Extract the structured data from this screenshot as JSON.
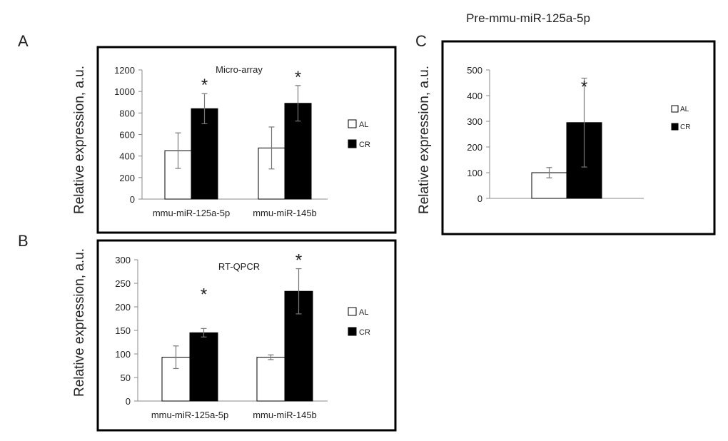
{
  "figure_title": "Pre-mmu-miR-125a-5p",
  "colors": {
    "al_fill": "#ffffff",
    "cr_fill": "#000000",
    "axis": "#888888",
    "error": "#777777",
    "frame": "#000000"
  },
  "chart_data": [
    {
      "panel": "A",
      "type": "bar",
      "title": "Micro-array",
      "ylabel": "Relative expression, a.u.",
      "xlabel": "",
      "ylim": [
        0,
        1200
      ],
      "yticks": [
        0,
        200,
        400,
        600,
        800,
        1000,
        1200
      ],
      "categories": [
        "mmu-miR-125a-5p",
        "mmu-miR-145b"
      ],
      "series": [
        {
          "name": "AL",
          "color": "#ffffff",
          "values": [
            450,
            475
          ],
          "errors": [
            165,
            195
          ]
        },
        {
          "name": "CR",
          "color": "#000000",
          "values": [
            840,
            890
          ],
          "errors": [
            140,
            165
          ]
        }
      ],
      "significance": [
        "*",
        "*"
      ],
      "legend_position": "right"
    },
    {
      "panel": "B",
      "type": "bar",
      "title": "RT-QPCR",
      "ylabel": "Relative expression, a.u.",
      "xlabel": "",
      "ylim": [
        0,
        300
      ],
      "yticks": [
        0,
        50,
        100,
        150,
        200,
        250,
        300
      ],
      "categories": [
        "mmu-miR-125a-5p",
        "mmu-miR-145b"
      ],
      "series": [
        {
          "name": "AL",
          "color": "#ffffff",
          "values": [
            93,
            93
          ],
          "errors": [
            24,
            5
          ]
        },
        {
          "name": "CR",
          "color": "#000000",
          "values": [
            145,
            233
          ],
          "errors": [
            9,
            48
          ]
        }
      ],
      "significance": [
        "*",
        "*"
      ],
      "legend_position": "right"
    },
    {
      "panel": "C",
      "type": "bar",
      "title": "",
      "ylabel": "Relative expression, a.u.",
      "xlabel": "",
      "ylim": [
        0,
        500
      ],
      "yticks": [
        0,
        100,
        200,
        300,
        400,
        500
      ],
      "categories": [
        ""
      ],
      "series": [
        {
          "name": "AL",
          "color": "#ffffff",
          "values": [
            100
          ],
          "errors": [
            20
          ]
        },
        {
          "name": "CR",
          "color": "#000000",
          "values": [
            295
          ],
          "errors": [
            173
          ]
        }
      ],
      "significance": [
        "*"
      ],
      "legend_position": "right"
    }
  ]
}
